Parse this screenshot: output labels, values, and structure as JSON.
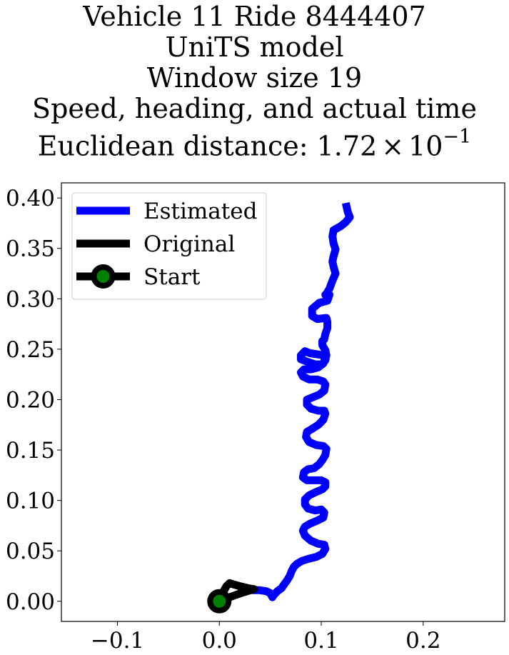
{
  "chart_data": {
    "type": "line",
    "title_lines": [
      "Vehicle 11 Ride 8444407",
      "UniTS model",
      "Window size 19",
      "Speed, heading, and actual time"
    ],
    "title_last_prefix": "Euclidean distance: ",
    "title_last_mantissa": "1.72",
    "title_last_times": "×",
    "title_last_base": "10",
    "title_last_exponent": "−1",
    "xlim": [
      -0.155,
      0.28
    ],
    "ylim": [
      -0.02,
      0.415
    ],
    "x_ticks": [
      -0.1,
      0.0,
      0.1,
      0.2
    ],
    "x_tick_labels": [
      "−0.1",
      "0.0",
      "0.1",
      "0.2"
    ],
    "y_ticks": [
      0.0,
      0.05,
      0.1,
      0.15,
      0.2,
      0.25,
      0.3,
      0.35,
      0.4
    ],
    "y_tick_labels": [
      "0.00",
      "0.05",
      "0.10",
      "0.15",
      "0.20",
      "0.25",
      "0.30",
      "0.35",
      "0.40"
    ],
    "grid": false,
    "legend": {
      "placement": "upper-left",
      "entries": [
        "Estimated",
        "Original",
        "Start"
      ]
    },
    "colors": {
      "estimated": "#0000ff",
      "original": "#000000",
      "start_edge": "#000000",
      "start_face": "#008000"
    },
    "series": [
      {
        "name": "Estimated",
        "x": [
          0.124,
          0.126,
          0.128,
          0.124,
          0.119,
          0.112,
          0.111,
          0.112,
          0.114,
          0.112,
          0.111,
          0.112,
          0.114,
          0.111,
          0.108,
          0.105,
          0.104,
          0.108,
          0.106,
          0.098,
          0.091,
          0.091,
          0.096,
          0.105,
          0.106,
          0.106,
          0.104,
          0.103,
          0.101,
          0.101,
          0.104,
          0.105,
          0.104,
          0.101,
          0.094,
          0.085,
          0.08,
          0.08,
          0.084,
          0.089,
          0.096,
          0.102,
          0.104,
          0.102,
          0.097,
          0.09,
          0.083,
          0.08,
          0.082,
          0.088,
          0.096,
          0.102,
          0.104,
          0.103,
          0.098,
          0.091,
          0.086,
          0.086,
          0.09,
          0.097,
          0.103,
          0.104,
          0.102,
          0.097,
          0.091,
          0.086,
          0.085,
          0.088,
          0.095,
          0.102,
          0.105,
          0.104,
          0.101,
          0.098,
          0.093,
          0.087,
          0.083,
          0.082,
          0.086,
          0.093,
          0.1,
          0.104,
          0.104,
          0.101,
          0.094,
          0.088,
          0.084,
          0.084,
          0.087,
          0.094,
          0.1,
          0.103,
          0.102,
          0.096,
          0.089,
          0.084,
          0.082,
          0.084,
          0.09,
          0.097,
          0.103,
          0.104,
          0.101,
          0.095,
          0.087,
          0.081,
          0.076,
          0.073,
          0.071,
          0.069,
          0.066,
          0.063,
          0.061,
          0.057,
          0.054,
          0.052,
          0.05,
          0.046,
          0.039,
          0.032,
          0.025,
          0.018
        ],
        "y": [
          0.395,
          0.386,
          0.381,
          0.376,
          0.372,
          0.368,
          0.362,
          0.355,
          0.349,
          0.342,
          0.337,
          0.332,
          0.325,
          0.318,
          0.31,
          0.305,
          0.304,
          0.304,
          0.298,
          0.296,
          0.29,
          0.283,
          0.28,
          0.281,
          0.277,
          0.271,
          0.265,
          0.26,
          0.258,
          0.254,
          0.249,
          0.244,
          0.239,
          0.235,
          0.235,
          0.238,
          0.24,
          0.244,
          0.248,
          0.246,
          0.245,
          0.244,
          0.241,
          0.236,
          0.232,
          0.23,
          0.23,
          0.227,
          0.223,
          0.22,
          0.22,
          0.218,
          0.215,
          0.209,
          0.205,
          0.202,
          0.2,
          0.195,
          0.191,
          0.189,
          0.189,
          0.186,
          0.18,
          0.175,
          0.171,
          0.168,
          0.163,
          0.158,
          0.155,
          0.154,
          0.151,
          0.145,
          0.14,
          0.136,
          0.132,
          0.131,
          0.128,
          0.123,
          0.12,
          0.12,
          0.12,
          0.118,
          0.114,
          0.111,
          0.108,
          0.105,
          0.101,
          0.096,
          0.092,
          0.09,
          0.091,
          0.088,
          0.083,
          0.08,
          0.077,
          0.074,
          0.07,
          0.065,
          0.06,
          0.057,
          0.056,
          0.052,
          0.047,
          0.044,
          0.042,
          0.04,
          0.037,
          0.034,
          0.03,
          0.025,
          0.02,
          0.016,
          0.013,
          0.01,
          0.007,
          0.004,
          0.008,
          0.01,
          0.011,
          0.011,
          0.012,
          0.012
        ]
      },
      {
        "name": "Original",
        "x": [
          0.0,
          0.003,
          0.007,
          0.01,
          0.013,
          0.02,
          0.028,
          0.034,
          0.021,
          0.01,
          0.0
        ],
        "y": [
          0.0,
          0.008,
          0.015,
          0.018,
          0.017,
          0.015,
          0.013,
          0.012,
          0.008,
          0.004,
          0.0
        ]
      }
    ],
    "start_point": {
      "label": "Start",
      "x": 0.0,
      "y": 0.0
    }
  }
}
